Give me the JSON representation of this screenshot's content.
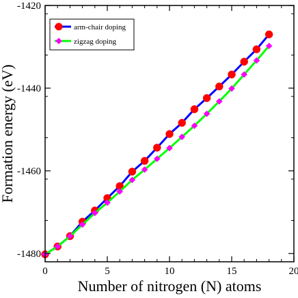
{
  "chart_data": {
    "type": "line",
    "title": "",
    "xlabel": "Number of nitrogen (N) atoms",
    "ylabel": "Formation energy (eV)",
    "xlim": [
      0,
      20
    ],
    "ylim": [
      -1482,
      -1420
    ],
    "x_ticks": [
      0,
      5,
      10,
      15,
      20
    ],
    "y_ticks": [
      -1480,
      -1460,
      -1440,
      -1420
    ],
    "x_tick_labels": [
      "0",
      "5",
      "10",
      "15",
      "20"
    ],
    "y_tick_labels": [
      "-1480",
      "-1460",
      "-1440",
      "-1420"
    ],
    "grid": false,
    "legend_position": "top-left",
    "series": [
      {
        "name": "arm-chair doping",
        "line_color": "#0000ff",
        "marker_color": "#ff0000",
        "marker": "circle",
        "x": [
          0,
          1,
          2,
          3,
          4,
          5,
          6,
          7,
          8,
          9,
          10,
          11,
          12,
          13,
          14,
          15,
          16,
          17,
          18
        ],
        "y": [
          -1480.2,
          -1478.3,
          -1475.8,
          -1472.3,
          -1469.6,
          -1466.6,
          -1463.7,
          -1460.2,
          -1457.6,
          -1454.4,
          -1451.1,
          -1448.4,
          -1445.1,
          -1442.4,
          -1439.6,
          -1436.7,
          -1433.6,
          -1430.6,
          -1427.0
        ]
      },
      {
        "name": "zigzag doping",
        "line_color": "#00ff00",
        "marker_color": "#ff00ff",
        "marker": "diamond",
        "x": [
          0,
          1,
          2,
          3,
          4,
          5,
          6,
          7,
          8,
          9,
          10,
          11,
          12,
          13,
          14,
          15,
          16,
          17,
          18
        ],
        "y": [
          -1480.2,
          -1478.3,
          -1475.8,
          -1473.0,
          -1470.2,
          -1467.7,
          -1465.0,
          -1462.2,
          -1459.7,
          -1457.1,
          -1454.5,
          -1451.8,
          -1449.1,
          -1446.2,
          -1443.2,
          -1440.1,
          -1436.7,
          -1433.3,
          -1429.8
        ]
      }
    ]
  }
}
